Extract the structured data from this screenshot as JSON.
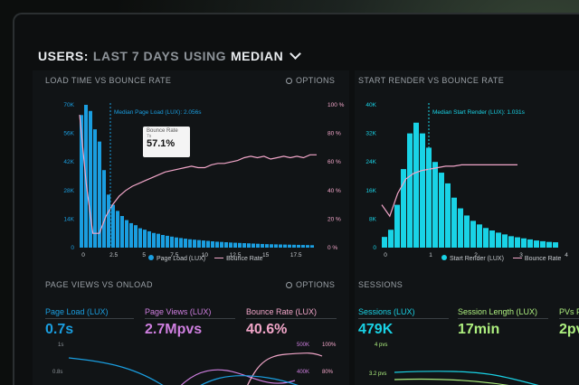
{
  "header": {
    "prefix": "USERS:",
    "period": "LAST 7 DAYS",
    "mid": "USING",
    "stat": "MEDIAN"
  },
  "colors": {
    "blue": "#1a9ee0",
    "cyan": "#19d3e6",
    "pink": "#f2a6c9",
    "violet": "#cf7fe0",
    "green": "#aef07f"
  },
  "panels": {
    "load": {
      "title": "LOAD TIME VS BOUNCE RATE",
      "options": "OPTIONS",
      "median_label": "Median Page Load (LUX): 2.056s",
      "tooltip": {
        "title": "Bounce Rate",
        "sub": "7s",
        "value": "57.1%"
      },
      "legend": [
        "Page Load (LUX)",
        "Bounce Rate"
      ]
    },
    "render": {
      "title": "START RENDER VS BOUNCE RATE",
      "median_label": "Median Start Render (LUX): 1.031s",
      "legend": [
        "Start Render (LUX)",
        "Bounce Rate"
      ]
    },
    "pageviews": {
      "title": "PAGE VIEWS VS ONLOAD",
      "options": "OPTIONS",
      "kpis": [
        {
          "label": "Page Load (LUX)",
          "value": "0.7s"
        },
        {
          "label": "Page Views (LUX)",
          "value": "2.7Mpvs"
        },
        {
          "label": "Bounce Rate (LUX)",
          "value": "40.6%"
        }
      ],
      "axis_left": [
        "1s",
        "0.8s"
      ],
      "axis_mid": [
        "500K",
        "400K"
      ],
      "axis_right": [
        "100%",
        "80%"
      ]
    },
    "sessions": {
      "title": "SESSIONS",
      "kpis": [
        {
          "label": "Sessions (LUX)",
          "value": "479K"
        },
        {
          "label": "Session Length (LUX)",
          "value": "17min"
        },
        {
          "label": "PVs Pe",
          "value": "2pv"
        }
      ],
      "axis": [
        "4 pvs",
        "3.2 pvs"
      ]
    }
  },
  "chart_data": [
    {
      "type": "bar",
      "title": "LOAD TIME VS BOUNCE RATE",
      "x_ticks": [
        "0",
        "2.5",
        "5",
        "7.5",
        "10",
        "12.5",
        "15",
        "17.5"
      ],
      "y_ticks_left": [
        "0",
        "14K",
        "28K",
        "42K",
        "56K",
        "70K"
      ],
      "y_ticks_right": [
        "0 %",
        "20 %",
        "40 %",
        "60 %",
        "80 %",
        "100 %"
      ],
      "ylim": [
        0,
        70000
      ],
      "series": [
        {
          "name": "Page Load (LUX)",
          "values": [
            65000,
            70000,
            67000,
            58000,
            52000,
            38000,
            26000,
            21000,
            18000,
            15500,
            13500,
            12000,
            11000,
            9500,
            8800,
            8000,
            7200,
            6800,
            6200,
            5800,
            5400,
            5000,
            4700,
            4400,
            4100,
            3900,
            3700,
            3500,
            3300,
            3100,
            2900,
            2800,
            2650,
            2500,
            2400,
            2300,
            2200,
            2100,
            2000,
            1900,
            1800,
            1700,
            1650,
            1600,
            1550,
            1500,
            1450,
            1400,
            1350,
            1300,
            1250,
            1200
          ]
        },
        {
          "name": "Bounce Rate",
          "values": [
            93,
            45,
            10,
            10,
            22,
            30,
            36,
            40,
            43,
            45,
            47,
            49,
            51,
            53,
            54,
            55,
            56,
            57,
            56,
            56,
            58,
            59,
            59,
            60,
            61,
            63,
            64,
            63,
            64,
            62,
            63,
            64,
            63,
            64,
            63,
            65,
            65
          ]
        }
      ],
      "xlim": [
        0,
        19.5
      ]
    },
    {
      "type": "bar",
      "title": "START RENDER VS BOUNCE RATE",
      "x_ticks": [
        "0",
        "1",
        "2",
        "3",
        "4"
      ],
      "y_ticks_left": [
        "0",
        "8K",
        "16K",
        "24K",
        "32K",
        "40K"
      ],
      "ylim": [
        0,
        40000
      ],
      "series": [
        {
          "name": "Start Render (LUX)",
          "values": [
            3000,
            5000,
            12000,
            22000,
            32000,
            35000,
            32000,
            28000,
            24000,
            21000,
            18000,
            14000,
            11000,
            9000,
            7500,
            6500,
            5500,
            4800,
            4200,
            3700,
            3200,
            2900,
            2600,
            2300,
            2000,
            1800,
            1600,
            1500
          ]
        },
        {
          "name": "Bounce Rate",
          "values": [
            30,
            22,
            38,
            48,
            52,
            54,
            55,
            56,
            57,
            57,
            58,
            58,
            58,
            58,
            58,
            58,
            58,
            58
          ]
        }
      ]
    }
  ]
}
